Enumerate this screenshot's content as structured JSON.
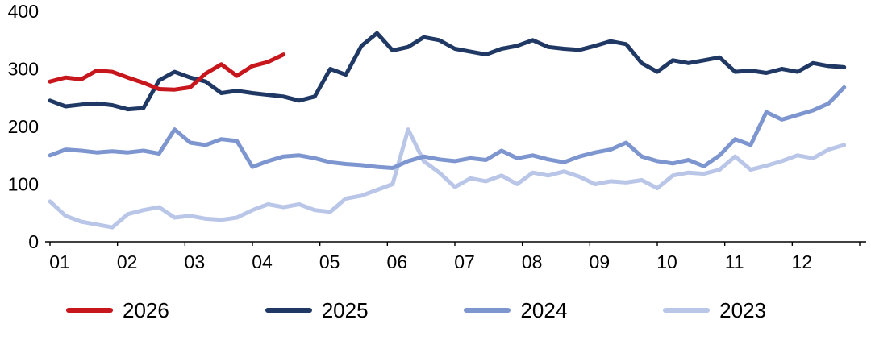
{
  "chart_data": {
    "type": "line",
    "title": "",
    "xlabel": "",
    "ylabel": "",
    "grid": false,
    "legend_position": "bottom",
    "ylim": [
      0,
      400
    ],
    "y_ticks": [
      0,
      100,
      200,
      300,
      400
    ],
    "x_tick_labels": [
      "01",
      "02",
      "03",
      "04",
      "05",
      "06",
      "07",
      "08",
      "09",
      "10",
      "11",
      "12"
    ],
    "x_months_span": [
      1,
      13
    ],
    "series": [
      {
        "name": "2023",
        "color": "#b9c6e8",
        "x_start": 1,
        "x_step": 0.23077,
        "values": [
          70,
          45,
          35,
          30,
          25,
          48,
          55,
          60,
          42,
          45,
          40,
          38,
          42,
          55,
          65,
          60,
          65,
          55,
          52,
          75,
          80,
          90,
          100,
          195,
          140,
          120,
          95,
          110,
          105,
          115,
          100,
          120,
          115,
          122,
          113,
          100,
          105,
          103,
          107,
          93,
          115,
          120,
          118,
          125,
          148,
          125,
          132,
          140,
          150,
          145,
          160,
          168
        ]
      },
      {
        "name": "2024",
        "color": "#7e96cf",
        "x_start": 1,
        "x_step": 0.23077,
        "values": [
          150,
          160,
          158,
          155,
          157,
          155,
          158,
          153,
          195,
          172,
          168,
          178,
          175,
          130,
          140,
          148,
          150,
          145,
          138,
          135,
          133,
          130,
          128,
          140,
          148,
          143,
          140,
          145,
          142,
          158,
          145,
          150,
          143,
          138,
          148,
          155,
          160,
          172,
          148,
          140,
          136,
          142,
          131,
          150,
          178,
          168,
          225,
          212,
          220,
          228,
          240,
          268
        ]
      },
      {
        "name": "2025",
        "color": "#1f3864",
        "x_start": 1,
        "x_step": 0.23077,
        "values": [
          245,
          235,
          238,
          240,
          237,
          230,
          232,
          280,
          295,
          285,
          278,
          258,
          262,
          258,
          255,
          252,
          245,
          252,
          300,
          290,
          340,
          362,
          332,
          338,
          355,
          350,
          335,
          330,
          325,
          335,
          340,
          350,
          338,
          335,
          333,
          340,
          348,
          343,
          310,
          295,
          315,
          310,
          315,
          320,
          295,
          297,
          293,
          300,
          295,
          310,
          305,
          303
        ]
      },
      {
        "name": "2026",
        "color": "#c8161d",
        "x_start": 1,
        "x_step": 0.23077,
        "values": [
          278,
          285,
          282,
          297,
          295,
          285,
          276,
          265,
          264,
          268,
          292,
          308,
          288,
          305,
          312,
          325
        ]
      }
    ],
    "legend_order": [
      "2026",
      "2025",
      "2024",
      "2023"
    ]
  }
}
